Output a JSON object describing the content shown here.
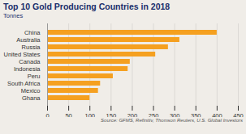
{
  "chart_data": {
    "type": "bar",
    "orientation": "horizontal",
    "title": "Top 10 Gold Producing Countries in 2018",
    "subtitle": "Tonnes",
    "annotations": [
      "Source: GFMS, Refinitiv, Thomson Reuters, U.S. Global Investors"
    ],
    "categories": [
      "China",
      "Australia",
      "Russia",
      "United States",
      "Canada",
      "Indonesia",
      "Peru",
      "South Africa",
      "Mexico",
      "Ghana"
    ],
    "values": [
      400,
      312,
      285,
      255,
      195,
      190,
      155,
      125,
      120,
      100
    ],
    "color": "#F5A020",
    "xlim": [
      0,
      450
    ],
    "xticks": [
      0,
      50,
      100,
      150,
      200,
      250,
      300,
      350,
      400,
      450
    ],
    "grid": true
  }
}
